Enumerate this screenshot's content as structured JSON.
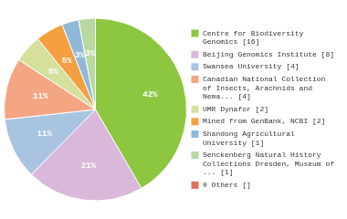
{
  "chart_data": {
    "type": "pie",
    "categories": [
      "Centre for Biodiversity\nGenomics [16]",
      "Beijing Genomics Institute [8]",
      "Swansea University [4]",
      "Canadian National Collection\nof Insects, Arachnids and\nNema... [4]",
      "UMR Dynafor [2]",
      "Mined from GenBank, NCBI [2]",
      "Shandong Agricultural\nUniversity [1]",
      "Senckenberg Natural History\nCollections Dresden, Museum of\n... [1]",
      "0 Others []"
    ],
    "values": [
      42,
      21,
      11,
      11,
      5,
      5,
      3,
      3,
      0
    ],
    "value_labels": [
      "42%",
      "21%",
      "11%",
      "11%",
      "5%",
      "5%",
      "3%",
      "3%",
      null
    ],
    "colors": [
      "#8dc63f",
      "#d9b8d9",
      "#a8c4e0",
      "#f4a582",
      "#d4e09b",
      "#f4a040",
      "#90b8d8",
      "#b8d8a0",
      "#e07060"
    ],
    "data_labels": true,
    "legend": "right"
  }
}
